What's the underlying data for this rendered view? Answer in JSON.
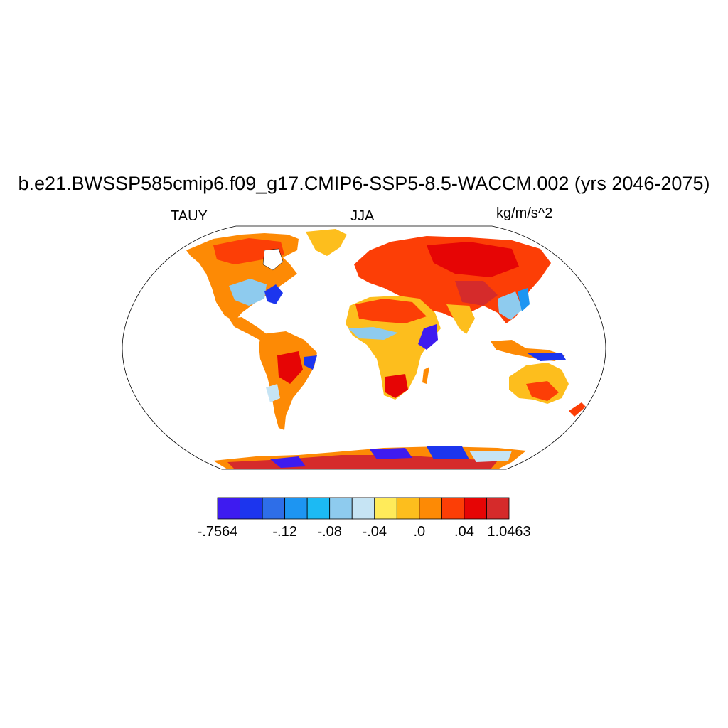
{
  "header": {
    "title": "b.e21.BWSSP585cmip6.f09_g17.CMIP6-SSP5-8.5-WACCM.002 (yrs 2046-2075)",
    "left_label": "TAUY",
    "center_label": "JJA",
    "right_label": "kg/m/s^2"
  },
  "colorbar": {
    "colors": [
      "#3e1bf0",
      "#1c35ee",
      "#2e6ee8",
      "#1d95f2",
      "#1cbaf3",
      "#8ecbee",
      "#c6e4f4",
      "#ffeb5a",
      "#fdbe1d",
      "#fd8a05",
      "#fc3e06",
      "#e60505",
      "#d52b2b"
    ],
    "labels": [
      "-.7564",
      "-.12",
      "-.08",
      "-.04",
      ".0",
      ".04",
      "1.0463"
    ]
  },
  "map": {
    "projection": "Robinson",
    "ocean_color": "#ffffff",
    "boundary_color": "#000000"
  }
}
